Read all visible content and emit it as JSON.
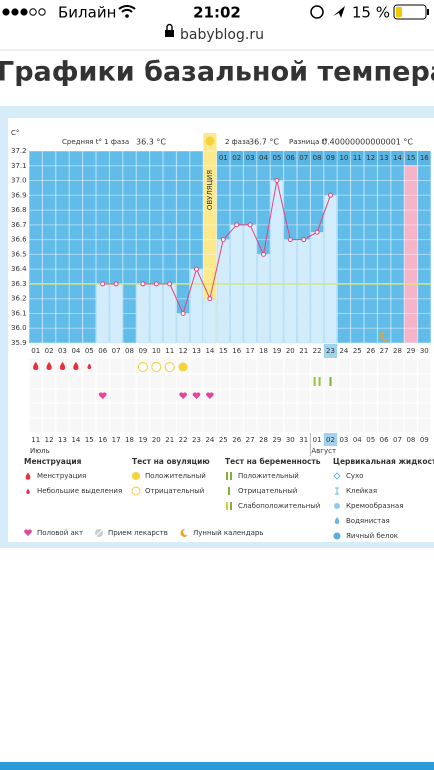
{
  "status_bar": {
    "carrier": "Билайн",
    "time": "21:02",
    "battery": "15 %"
  },
  "address_bar": {
    "url": "babyblog.ru"
  },
  "page": {
    "title": "Графики базальной температуры"
  },
  "chart_data": {
    "type": "line",
    "y_label": "C°",
    "ylim": [
      35.9,
      37.2
    ],
    "yticks": [
      35.9,
      {
        "value": 36,
        "label": "36.0"
      },
      36.1,
      36.2,
      36.3,
      36.4,
      36.5,
      36.6,
      36.7,
      36.8,
      36.9,
      {
        "value": 37,
        "label": "37.0"
      },
      37.1,
      37.2
    ],
    "categories": [
      "01",
      "02",
      "03",
      "04",
      "05",
      "06",
      "07",
      "08",
      "09",
      "10",
      "11",
      "12",
      "13",
      "14",
      "15",
      "16",
      "17",
      "18",
      "19",
      "20",
      "21",
      "22",
      "23",
      "24",
      "25",
      "26",
      "27",
      "28",
      "29",
      "30"
    ],
    "values": [
      null,
      null,
      null,
      null,
      null,
      36.3,
      36.3,
      null,
      36.3,
      36.3,
      36.3,
      36.1,
      36.4,
      36.2,
      36.6,
      36.7,
      36.7,
      36.5,
      37.0,
      36.6,
      36.6,
      36.65,
      36.9,
      null,
      null,
      null,
      null,
      null,
      null,
      null
    ],
    "line_color": "#e2457f",
    "bar_color": "#d2ecfb",
    "coverline": 36.3,
    "coverline_color": "#d6e67a",
    "phase1_label": "Средняя t° 1 фаза",
    "phase1_value": "36.3 °C",
    "phase2_label": "2 фаза",
    "phase2_value": "36.7 °C",
    "diff_label": "Разница t°",
    "diff_value": "0.40000000000001 °C",
    "ovulation_label": "ОВУЛЯЦИЯ",
    "ovulation_day": "14",
    "expected_period": [
      "29"
    ],
    "today": "23",
    "phase2_days": [
      "01",
      "02",
      "03",
      "04",
      "05",
      "06",
      "07",
      "08",
      "09",
      "10",
      "11",
      "12",
      "13",
      "14",
      "15",
      "16"
    ],
    "dates": [
      "11",
      "12",
      "13",
      "14",
      "15",
      "16",
      "17",
      "18",
      "19",
      "20",
      "21",
      "22",
      "23",
      "24",
      "25",
      "26",
      "27",
      "28",
      "29",
      "30",
      "31",
      "01",
      "02",
      "03",
      "04",
      "05",
      "06",
      "07",
      "08",
      "09"
    ],
    "weekend_dates": [
      "14",
      "15",
      "21",
      "22",
      "28",
      "29",
      "04",
      "05"
    ],
    "months": [
      "Июль",
      "Август"
    ],
    "markers": {
      "menstruation": [
        "01",
        "02",
        "03",
        "04"
      ],
      "spotting": [
        "05"
      ],
      "ovulation_positive": [
        "12"
      ],
      "ovulation_negative": [
        "09",
        "10",
        "11"
      ],
      "pregnancy_positive": [
        "22"
      ],
      "pregnancy_negative": [
        "23"
      ],
      "intercourse": [
        "06",
        "12",
        "13",
        "14"
      ],
      "moon": [
        "27"
      ]
    },
    "legend": [
      {
        "title": "Менструация",
        "items": [
          "Менструация",
          "Небольшие выделения"
        ]
      },
      {
        "title": "Тест на овуляцию",
        "items": [
          "Положительный",
          "Отрицательный"
        ]
      },
      {
        "title": "Тест на беременность",
        "items": [
          "Положительный",
          "Отрицательный",
          "Слабоположительный"
        ]
      },
      {
        "title": "Цервикальная жидкость",
        "items": [
          "Сухо",
          "Клейкая",
          "Кремообразная",
          "Водянистая",
          "Яичный белок"
        ]
      }
    ],
    "legend_extra": [
      "Половой акт",
      "Прием лекарств",
      "Лунный календарь"
    ]
  }
}
